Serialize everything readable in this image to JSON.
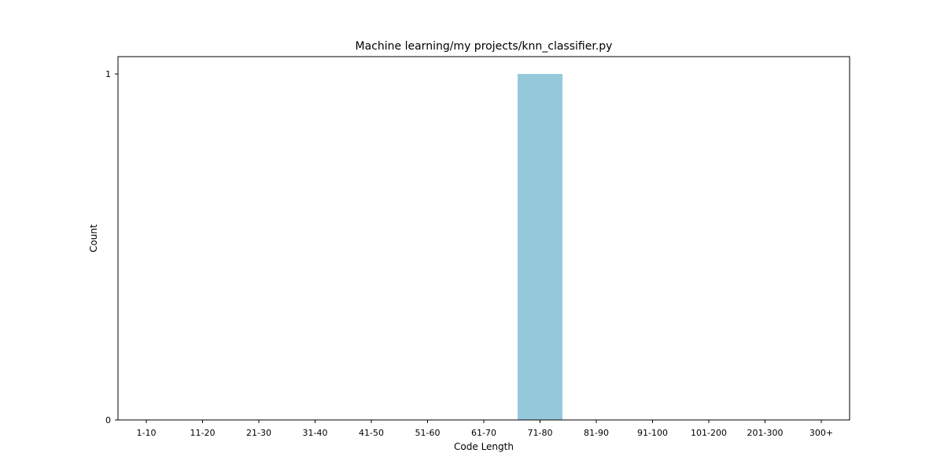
{
  "chart_data": {
    "type": "bar",
    "title": "Machine learning/my projects/knn_classifier.py",
    "xlabel": "Code Length",
    "ylabel": "Count",
    "categories": [
      "1-10",
      "11-20",
      "21-30",
      "31-40",
      "41-50",
      "51-60",
      "61-70",
      "71-80",
      "81-90",
      "91-100",
      "101-200",
      "201-300",
      "300+"
    ],
    "values": [
      0,
      0,
      0,
      0,
      0,
      0,
      0,
      1,
      0,
      0,
      0,
      0,
      0
    ],
    "ylim": [
      0,
      1
    ],
    "yticks": [
      0,
      1
    ],
    "bar_color": "#96c8dc",
    "grid": false,
    "legend": "none"
  }
}
